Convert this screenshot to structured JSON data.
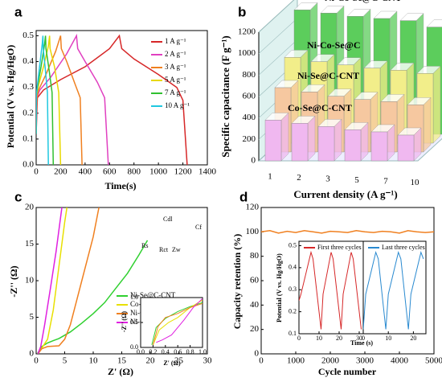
{
  "chart_data": [
    {
      "panel": "a",
      "type": "line",
      "xlabel": "Time(s)",
      "ylabel": "Potential (V vs. Hg/HgO)",
      "xlim": [
        0,
        1400
      ],
      "xticks": [
        0,
        200,
        400,
        600,
        800,
        1000,
        1200,
        1400
      ],
      "ylim": [
        0,
        0.52
      ],
      "yticks": [
        {
          "value": 0,
          "label": "0.0"
        },
        0.1,
        0.2,
        0.3,
        0.4,
        0.5
      ],
      "legend": "upper right",
      "series": [
        {
          "name": "1 A g⁻¹",
          "color": "#d62728",
          "x": [
            0,
            10,
            60,
            200,
            400,
            600,
            680,
            700,
            800,
            1000,
            1150,
            1200,
            1235
          ],
          "values": [
            0.12,
            0.26,
            0.29,
            0.33,
            0.38,
            0.45,
            0.5,
            0.45,
            0.41,
            0.35,
            0.3,
            0.25,
            0
          ]
        },
        {
          "name": "2 A g⁻¹",
          "color": "#e040c0",
          "x": [
            0,
            5,
            30,
            120,
            250,
            330,
            340,
            400,
            500,
            560,
            590
          ],
          "values": [
            0.12,
            0.26,
            0.29,
            0.34,
            0.43,
            0.5,
            0.45,
            0.4,
            0.32,
            0.26,
            0
          ]
        },
        {
          "name": "3 A g⁻¹",
          "color": "#f08020",
          "x": [
            0,
            4,
            20,
            80,
            160,
            200,
            206,
            250,
            320,
            360,
            375
          ],
          "values": [
            0.12,
            0.26,
            0.29,
            0.35,
            0.44,
            0.5,
            0.45,
            0.4,
            0.31,
            0.26,
            0
          ]
        },
        {
          "name": "5 A g⁻¹",
          "color": "#e8d800",
          "x": [
            0,
            3,
            15,
            60,
            100,
            110,
            114,
            150,
            185,
            200
          ],
          "values": [
            0.12,
            0.27,
            0.3,
            0.38,
            0.46,
            0.5,
            0.45,
            0.38,
            0.28,
            0
          ]
        },
        {
          "name": "7 A g⁻¹",
          "color": "#30c030",
          "x": [
            0,
            2,
            10,
            40,
            70,
            76,
            80,
            105,
            130,
            140
          ],
          "values": [
            0.12,
            0.27,
            0.3,
            0.38,
            0.47,
            0.5,
            0.45,
            0.37,
            0.28,
            0
          ]
        },
        {
          "name": "10 A g⁻¹",
          "color": "#20c8e0",
          "x": [
            0,
            2,
            8,
            30,
            50,
            55,
            58,
            75,
            92,
            100
          ],
          "values": [
            0.12,
            0.27,
            0.3,
            0.39,
            0.47,
            0.5,
            0.45,
            0.37,
            0.28,
            0
          ]
        }
      ]
    },
    {
      "panel": "b",
      "type": "bar3d",
      "xlabel": "Current density (A g⁻¹)",
      "ylabel": "Specific capacitance (F g⁻¹)",
      "categories": [
        "1",
        "2",
        "3",
        "5",
        "7",
        "10"
      ],
      "ylim": [
        0,
        1200
      ],
      "yticks": [
        0,
        200,
        400,
        600,
        800,
        1000,
        1200
      ],
      "series": [
        {
          "name": "Ni-Co-Se@C-CNT",
          "color": "#5ccd5c",
          "values": [
            1160,
            1130,
            1100,
            1080,
            1060,
            1000
          ]
        },
        {
          "name": "Ni-Co-Se@C",
          "color": "#f2ee8a",
          "values": [
            800,
            760,
            730,
            700,
            680,
            650
          ]
        },
        {
          "name": "Ni-Se@C-CNT",
          "color": "#f6c8a0",
          "values": [
            600,
            560,
            520,
            490,
            470,
            440
          ]
        },
        {
          "name": "Co-Se@C-CNT",
          "color": "#f0b8f0",
          "values": [
            380,
            350,
            320,
            290,
            270,
            240
          ]
        }
      ]
    },
    {
      "panel": "c",
      "type": "line",
      "xlabel": "Z' (Ω)",
      "ylabel": "-Z'' (Ω)",
      "xlim": [
        0,
        30
      ],
      "xticks": [
        0,
        5,
        10,
        15,
        20,
        25,
        30
      ],
      "ylim": [
        0,
        20
      ],
      "yticks": [
        0,
        5,
        10,
        15,
        20
      ],
      "legend": "center right",
      "annotations": [
        "Rs",
        "Cdl",
        "Rct",
        "Zw",
        "Cf"
      ],
      "series": [
        {
          "name": "Ni-Se@C-CNT",
          "color": "#30d030",
          "x": [
            0.2,
            1,
            2,
            3,
            4,
            6,
            8,
            10,
            12,
            14,
            16,
            18,
            19.5
          ],
          "values": [
            0,
            1,
            1.5,
            1.8,
            2.1,
            3,
            4.2,
            5.5,
            7,
            9,
            11,
            13.5,
            15.5
          ]
        },
        {
          "name": "Co-Se@C-CNT",
          "color": "#e8e000",
          "x": [
            0.3,
            1,
            2,
            3,
            4,
            5,
            5.4
          ],
          "values": [
            0,
            0.8,
            2,
            6,
            12,
            18,
            20
          ]
        },
        {
          "name": "Ni-Co-Se@C",
          "color": "#f08020",
          "x": [
            0.3,
            1,
            2,
            4,
            5,
            6,
            7,
            8,
            9,
            10,
            11
          ],
          "values": [
            0,
            0.7,
            1,
            1.1,
            2,
            4,
            7,
            10,
            13,
            16,
            20
          ]
        },
        {
          "name": "Ni-Co-Se@C-CNT",
          "color": "#e020e0",
          "x": [
            0.3,
            0.8,
            1.5,
            2.5,
            3.5,
            4.5
          ],
          "values": [
            0,
            1,
            4,
            9,
            14,
            20
          ]
        }
      ]
    },
    {
      "type": "line",
      "xlabel": "Z' (Ω)",
      "ylabel": "-Z'' (Ω)",
      "xlim": [
        0,
        1
      ],
      "xticks": [
        {
          "value": 0,
          "label": "0.0"
        },
        0.2,
        0.4,
        0.6,
        0.8,
        {
          "value": 1,
          "label": "1.0"
        }
      ],
      "ylim": [
        0,
        1
      ],
      "yticks": [
        {
          "value": 0,
          "label": "0.0"
        },
        0.5,
        {
          "value": 1,
          "label": "1.0"
        }
      ],
      "series": [
        {
          "color": "#30d030",
          "x": [
            0.18,
            0.25,
            0.4,
            0.6,
            0.8,
            1
          ],
          "values": [
            0.05,
            0.4,
            0.58,
            0.72,
            0.82,
            0.9
          ]
        },
        {
          "color": "#e8e000",
          "x": [
            0.2,
            0.3,
            0.45,
            0.6,
            0.8,
            1
          ],
          "values": [
            0.05,
            0.35,
            0.5,
            0.6,
            0.8,
            0.95
          ]
        },
        {
          "color": "#f08020",
          "x": [
            0.2,
            0.28,
            0.4,
            0.6,
            0.8,
            1
          ],
          "values": [
            0.05,
            0.42,
            0.6,
            0.68,
            0.8,
            0.88
          ]
        },
        {
          "color": "#e020e0",
          "x": [
            0.25,
            0.35,
            0.5,
            0.7,
            0.85,
            1
          ],
          "values": [
            0.1,
            0.15,
            0.25,
            0.55,
            0.8,
            0.98
          ]
        }
      ]
    },
    {
      "panel": "d",
      "type": "line",
      "xlabel": "Cycle number",
      "ylabel": "Capacity retention (%)",
      "xlim": [
        0,
        5000
      ],
      "xticks": [
        0,
        1000,
        2000,
        3000,
        4000,
        5000
      ],
      "ylim": [
        0,
        120
      ],
      "yticks": [
        0,
        20,
        40,
        60,
        80,
        100,
        120
      ],
      "series": [
        {
          "color": "#f08020",
          "x": [
            0,
            250,
            500,
            750,
            1000,
            1250,
            1500,
            1750,
            2000,
            2250,
            2500,
            2750,
            3000,
            3250,
            3500,
            3750,
            4000,
            4250,
            4500,
            4750,
            5000
          ],
          "values": [
            100,
            101,
            99,
            100.5,
            99.5,
            101,
            100,
            99,
            100.5,
            100,
            99.5,
            101,
            100,
            99.5,
            100.5,
            100,
            99,
            101,
            100,
            99.5,
            100
          ]
        }
      ]
    },
    {
      "type": "line",
      "xlabel": "Time (s)",
      "ylabel": "Potential (V vs. Hg/HgO)",
      "xlim": [
        0,
        32
      ],
      "xticks": [
        0,
        10,
        20,
        30
      ],
      "ylim": [
        0.1,
        0.52
      ],
      "yticks": [
        0.1,
        0.2,
        0.3,
        0.4,
        0.5
      ],
      "series": [
        {
          "name": "First three cycles",
          "color": "#d62728",
          "x": [
            0,
            1,
            6,
            7,
            11,
            12,
            16,
            17,
            21,
            22,
            26,
            27,
            31
          ],
          "values": [
            0.25,
            0.28,
            0.47,
            0.44,
            0.12,
            0.28,
            0.47,
            0.44,
            0.12,
            0.28,
            0.47,
            0.44,
            0.12
          ]
        }
      ]
    },
    {
      "type": "line",
      "xlim": [
        0,
        25
      ],
      "xticks": [
        0,
        10,
        20
      ],
      "ylim": [
        0.1,
        0.52
      ],
      "series": [
        {
          "name": "Last three cycles",
          "color": "#2a8ad0",
          "x": [
            0,
            1,
            5,
            6,
            9,
            10,
            14,
            15,
            18,
            19,
            23,
            24
          ],
          "values": [
            0.12,
            0.28,
            0.47,
            0.44,
            0.12,
            0.28,
            0.47,
            0.44,
            0.12,
            0.28,
            0.47,
            0.44
          ]
        }
      ]
    }
  ]
}
